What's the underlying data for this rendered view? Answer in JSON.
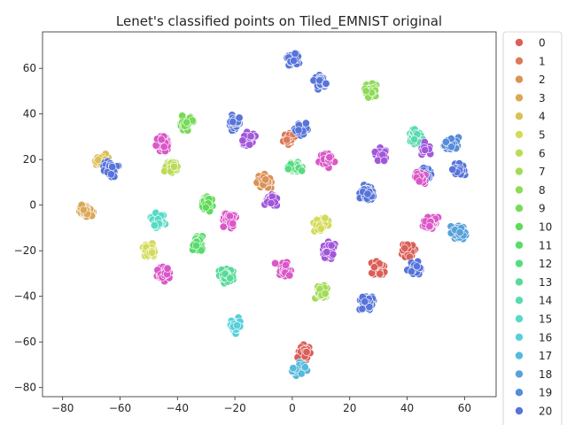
{
  "chart_data": {
    "type": "scatter",
    "title": "Lenet's classified points on Tiled_EMNIST original",
    "xlabel": "",
    "ylabel": "",
    "xlim": [
      -87,
      71
    ],
    "ylim": [
      -84,
      76
    ],
    "xticks": [
      -80,
      -60,
      -40,
      -20,
      0,
      20,
      40,
      60
    ],
    "yticks": [
      -80,
      -60,
      -40,
      -20,
      0,
      20,
      40,
      60
    ],
    "grid": false,
    "legend_placement": "outside-right",
    "legend_entries": [
      "0",
      "1",
      "2",
      "3",
      "4",
      "5",
      "6",
      "7",
      "8",
      "9",
      "10",
      "11",
      "12",
      "13",
      "14",
      "15",
      "16",
      "17",
      "18",
      "19",
      "20"
    ],
    "series_colors": [
      "#db5f57",
      "#db7a57",
      "#db9157",
      "#dba857",
      "#dbbf57",
      "#d3db57",
      "#bbdb57",
      "#a4db57",
      "#8ddb57",
      "#76db57",
      "#5fdb57",
      "#57db6a",
      "#57db81",
      "#57db98",
      "#57dbaf",
      "#57dbc6",
      "#57d0db",
      "#57b9db",
      "#57a2db",
      "#578bdb",
      "#5774db"
    ],
    "clusters": [
      {
        "series": "0",
        "x": 4,
        "y": -64,
        "n": 40
      },
      {
        "series": "0",
        "x": 30,
        "y": -28,
        "n": 50
      },
      {
        "series": "0",
        "x": 40,
        "y": -20,
        "n": 40
      },
      {
        "series": "1",
        "x": -1,
        "y": 29,
        "n": 40
      },
      {
        "series": "2",
        "x": -10,
        "y": 10,
        "n": 45
      },
      {
        "series": "3",
        "x": -72,
        "y": -2,
        "n": 45
      },
      {
        "series": "4",
        "x": -66,
        "y": 19,
        "n": 55
      },
      {
        "series": "5",
        "x": 10,
        "y": -8,
        "n": 40
      },
      {
        "series": "5",
        "x": -50,
        "y": -20,
        "n": 55
      },
      {
        "series": "6",
        "x": -42,
        "y": 17,
        "n": 40
      },
      {
        "series": "7",
        "x": 10,
        "y": -38,
        "n": 45
      },
      {
        "series": "8",
        "x": 27,
        "y": 50,
        "n": 35
      },
      {
        "series": "9",
        "x": -37,
        "y": 36,
        "n": 35
      },
      {
        "series": "10",
        "x": -30,
        "y": 1,
        "n": 40
      },
      {
        "series": "11",
        "x": -33,
        "y": -17,
        "n": 40
      },
      {
        "series": "12",
        "x": 1,
        "y": 17,
        "n": 40
      },
      {
        "series": "13",
        "x": -23,
        "y": -31,
        "n": 45
      },
      {
        "series": "14",
        "x": 43,
        "y": 30,
        "n": 40
      },
      {
        "series": "15",
        "x": -47,
        "y": -7,
        "n": 40
      },
      {
        "series": "16",
        "x": -20,
        "y": -53,
        "n": 35
      },
      {
        "series": "17",
        "x": 3,
        "y": -72,
        "n": 20
      },
      {
        "series": "18",
        "x": 58,
        "y": -12,
        "n": 45
      },
      {
        "series": "19",
        "x": 55,
        "y": 27,
        "n": 35
      },
      {
        "series": "20",
        "x": 58,
        "y": 16,
        "n": 40
      },
      {
        "series": "20",
        "x": 3,
        "y": 33,
        "n": 25
      },
      {
        "series": "20",
        "x": -20,
        "y": 36,
        "n": 35
      },
      {
        "series": "20",
        "x": 10,
        "y": 54,
        "n": 45
      },
      {
        "series": "20",
        "x": 0,
        "y": 64,
        "n": 40
      },
      {
        "series": "20",
        "x": -63,
        "y": 16,
        "n": 40
      },
      {
        "series": "20",
        "x": 26,
        "y": 5,
        "n": 90
      },
      {
        "series": "20",
        "x": 26,
        "y": -43,
        "n": 45
      },
      {
        "series": "20",
        "x": 43,
        "y": -28,
        "n": 35
      },
      {
        "series": "20",
        "x": 46,
        "y": 14,
        "n": 30
      },
      {
        "series": "magenta",
        "x": -45,
        "y": 27,
        "n": 55
      },
      {
        "series": "magenta",
        "x": -22,
        "y": -7,
        "n": 50
      },
      {
        "series": "magenta",
        "x": -45,
        "y": -30,
        "n": 45
      },
      {
        "series": "magenta",
        "x": 48,
        "y": -8,
        "n": 40
      },
      {
        "series": "magenta",
        "x": 45,
        "y": 12,
        "n": 30
      },
      {
        "series": "magenta",
        "x": 12,
        "y": 20,
        "n": 30
      },
      {
        "series": "magenta",
        "x": -3,
        "y": -28,
        "n": 30
      },
      {
        "series": "purple",
        "x": -7,
        "y": 2,
        "n": 40
      },
      {
        "series": "purple",
        "x": 13,
        "y": -20,
        "n": 45
      },
      {
        "series": "purple",
        "x": 31,
        "y": 22,
        "n": 30
      },
      {
        "series": "purple",
        "x": -15,
        "y": 29,
        "n": 30
      },
      {
        "series": "purple",
        "x": 46,
        "y": 25,
        "n": 15
      }
    ],
    "extra_colors": {
      "magenta": "#db57c8",
      "purple": "#a257db"
    }
  }
}
